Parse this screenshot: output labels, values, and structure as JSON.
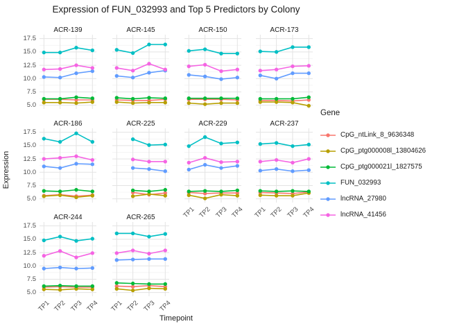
{
  "chart_data": {
    "type": "line",
    "title": "Expression of FUN_032993 and Top 5 Predictors by Colony",
    "xlabel": "Timepoint",
    "ylabel": "Expression",
    "x_categories": [
      "TP1",
      "TP2",
      "TP3",
      "TP4"
    ],
    "yticks": [
      {
        "v": 17.5,
        "label": "17.5"
      },
      {
        "v": 15.0,
        "label": "15.0"
      },
      {
        "v": 12.5,
        "label": "12.5"
      },
      {
        "v": 10.0,
        "label": "10.0"
      },
      {
        "v": 7.5,
        "label": "7.5"
      },
      {
        "v": 5.0,
        "label": "5.0"
      }
    ],
    "ylim": [
      4.3,
      18.25
    ],
    "grid": "major-and-minor",
    "legend_position": "right",
    "genes": [
      {
        "name": "CpG_ntLink_8_9636348",
        "color": "#F8766D"
      },
      {
        "name": "CpG_ptg000008l_13804626",
        "color": "#B79F00"
      },
      {
        "name": "CpG_ptg000021l_1827575",
        "color": "#00BA38"
      },
      {
        "name": "FUN_032993",
        "color": "#00BFC4"
      },
      {
        "name": "lncRNA_27980",
        "color": "#619CFF"
      },
      {
        "name": "lncRNA_41456",
        "color": "#F564E3"
      }
    ],
    "facets": [
      {
        "name": "ACR-139",
        "series": [
          [
            6.1,
            6.1,
            6.0,
            6.0
          ],
          [
            5.5,
            5.5,
            5.4,
            5.6
          ],
          [
            6.2,
            6.2,
            6.5,
            6.3
          ],
          [
            14.9,
            14.9,
            15.8,
            15.3
          ],
          [
            10.3,
            10.2,
            11.0,
            11.4
          ],
          [
            11.7,
            11.8,
            12.5,
            12.0
          ]
        ]
      },
      {
        "name": "ACR-145",
        "series": [
          [
            6.0,
            5.9,
            5.9,
            6.1
          ],
          [
            5.6,
            5.4,
            5.5,
            5.5
          ],
          [
            6.4,
            6.2,
            6.4,
            6.3
          ],
          [
            15.4,
            14.8,
            16.4,
            16.4
          ],
          [
            10.5,
            10.2,
            11.1,
            11.5
          ],
          [
            12.0,
            11.5,
            12.8,
            11.7
          ]
        ]
      },
      {
        "name": "ACR-150",
        "series": [
          [
            6.1,
            6.1,
            6.1,
            6.0
          ],
          [
            5.4,
            5.2,
            5.4,
            5.4
          ],
          [
            6.3,
            6.3,
            6.3,
            6.3
          ],
          [
            15.2,
            15.5,
            14.7,
            14.7
          ],
          [
            10.7,
            10.4,
            9.9,
            10.2
          ],
          [
            12.3,
            12.6,
            11.4,
            11.7
          ]
        ]
      },
      {
        "name": "ACR-173",
        "series": [
          [
            5.9,
            5.9,
            5.8,
            6.0
          ],
          [
            5.6,
            5.6,
            5.5,
            4.9
          ],
          [
            6.2,
            6.2,
            6.2,
            6.5
          ],
          [
            15.1,
            15.0,
            15.9,
            15.9
          ],
          [
            10.6,
            10.0,
            11.0,
            11.0
          ],
          [
            11.5,
            11.7,
            12.3,
            12.4
          ]
        ]
      },
      {
        "name": "ACR-186",
        "series": [
          [
            5.6,
            5.8,
            5.5,
            5.7
          ],
          [
            5.5,
            5.7,
            5.3,
            5.6
          ],
          [
            6.5,
            6.4,
            6.7,
            6.4
          ],
          [
            16.3,
            15.7,
            17.3,
            15.7
          ],
          [
            11.1,
            10.8,
            11.6,
            11.5
          ],
          [
            12.5,
            12.7,
            13.0,
            12.3
          ]
        ]
      },
      {
        "name": "ACR-225",
        "series": [
          [
            null,
            6.2,
            5.8,
            6.1
          ],
          [
            null,
            5.5,
            5.9,
            5.6
          ],
          [
            null,
            6.6,
            6.4,
            6.7
          ],
          [
            null,
            16.2,
            15.1,
            15.2
          ],
          [
            null,
            10.8,
            10.6,
            10.2
          ],
          [
            null,
            12.4,
            12.0,
            12.0
          ]
        ]
      },
      {
        "name": "ACR-229",
        "series": [
          [
            6.2,
            6.0,
            6.1,
            6.1
          ],
          [
            5.7,
            5.1,
            5.8,
            5.6
          ],
          [
            6.4,
            6.5,
            6.4,
            6.6
          ],
          [
            14.9,
            16.6,
            15.4,
            15.6
          ],
          [
            10.5,
            11.4,
            10.8,
            11.2
          ],
          [
            11.8,
            12.7,
            11.9,
            12.0
          ]
        ]
      },
      {
        "name": "ACR-237",
        "series": [
          [
            6.2,
            6.1,
            6.0,
            6.3
          ],
          [
            5.7,
            5.6,
            5.6,
            6.1
          ],
          [
            6.5,
            6.4,
            6.5,
            6.4
          ],
          [
            15.3,
            15.5,
            14.9,
            15.2
          ],
          [
            10.3,
            10.6,
            10.2,
            10.4
          ],
          [
            12.0,
            12.3,
            11.8,
            12.5
          ]
        ]
      },
      {
        "name": "ACR-244",
        "series": [
          [
            6.0,
            6.1,
            6.0,
            6.0
          ],
          [
            5.6,
            5.5,
            5.7,
            5.6
          ],
          [
            6.2,
            6.3,
            6.2,
            6.2
          ],
          [
            14.8,
            15.5,
            14.7,
            15.1
          ],
          [
            9.5,
            9.7,
            9.5,
            9.6
          ],
          [
            11.9,
            12.8,
            11.6,
            12.4
          ]
        ]
      },
      {
        "name": "ACR-265",
        "series": [
          [
            6.2,
            6.1,
            6.3,
            6.1
          ],
          [
            5.7,
            5.4,
            5.8,
            5.7
          ],
          [
            6.8,
            6.7,
            6.6,
            6.6
          ],
          [
            16.1,
            16.1,
            15.5,
            16.0
          ],
          [
            11.1,
            11.2,
            11.3,
            11.3
          ],
          [
            12.4,
            12.9,
            12.3,
            12.9
          ]
        ]
      }
    ]
  },
  "legend": {
    "title": "Gene"
  },
  "colors": {
    "grid_major": "#e3e3e3",
    "grid_minor": "#f1f1f1",
    "tick_text": "#4d4d4d",
    "title_text": "#1a1a1a"
  }
}
